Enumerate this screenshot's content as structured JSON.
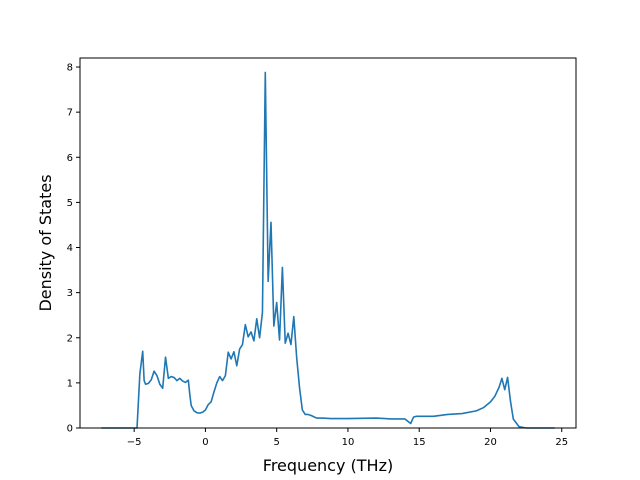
{
  "chart_data": {
    "type": "line",
    "xlabel": "Frequency (THz)",
    "ylabel": "Density of States",
    "xlim": [
      -8.8,
      26.0
    ],
    "ylim": [
      0,
      8.2
    ],
    "xticks": [
      -5,
      0,
      5,
      10,
      15,
      20,
      25
    ],
    "yticks": [
      0,
      1,
      2,
      3,
      4,
      5,
      6,
      7,
      8
    ],
    "grid": false,
    "legend": "none",
    "series": [
      {
        "color": "#1f77b4",
        "x": [
          -7.3,
          -4.8,
          -4.6,
          -4.5,
          -4.4,
          -4.3,
          -4.2,
          -4.0,
          -3.8,
          -3.6,
          -3.4,
          -3.2,
          -3.0,
          -2.8,
          -2.6,
          -2.4,
          -2.2,
          -2.0,
          -1.8,
          -1.6,
          -1.4,
          -1.2,
          -1.1,
          -1.0,
          -0.8,
          -0.6,
          -0.4,
          -0.2,
          0.0,
          0.2,
          0.4,
          0.6,
          0.8,
          1.0,
          1.2,
          1.4,
          1.6,
          1.8,
          2.0,
          2.2,
          2.4,
          2.6,
          2.8,
          3.0,
          3.2,
          3.4,
          3.6,
          3.8,
          4.0,
          4.2,
          4.4,
          4.6,
          4.8,
          5.0,
          5.2,
          5.4,
          5.6,
          5.8,
          6.0,
          6.2,
          6.4,
          6.6,
          6.8,
          7.0,
          7.2,
          7.4,
          7.6,
          7.8,
          8.2,
          8.8,
          10.0,
          12.0,
          13.0,
          14.0,
          14.4,
          14.6,
          14.8,
          16.0,
          17.0,
          18.0,
          19.0,
          19.5,
          20.0,
          20.3,
          20.6,
          20.8,
          21.0,
          21.2,
          21.4,
          21.6,
          22.0,
          22.5,
          24.5
        ],
        "y": [
          0,
          0,
          1.2,
          1.45,
          1.7,
          1.05,
          0.97,
          0.99,
          1.07,
          1.26,
          1.16,
          0.97,
          0.88,
          1.57,
          1.1,
          1.14,
          1.12,
          1.05,
          1.1,
          1.04,
          1.01,
          1.06,
          0.75,
          0.5,
          0.38,
          0.34,
          0.33,
          0.35,
          0.4,
          0.52,
          0.58,
          0.8,
          1.0,
          1.14,
          1.05,
          1.16,
          1.68,
          1.53,
          1.69,
          1.38,
          1.75,
          1.85,
          2.29,
          2.02,
          2.13,
          1.93,
          2.42,
          2.0,
          2.56,
          7.88,
          3.25,
          4.56,
          2.26,
          2.78,
          1.95,
          3.56,
          1.88,
          2.1,
          1.85,
          2.47,
          1.57,
          0.9,
          0.4,
          0.3,
          0.3,
          0.28,
          0.25,
          0.22,
          0.22,
          0.21,
          0.21,
          0.22,
          0.2,
          0.2,
          0.1,
          0.24,
          0.26,
          0.26,
          0.3,
          0.32,
          0.38,
          0.45,
          0.58,
          0.7,
          0.9,
          1.1,
          0.85,
          1.12,
          0.6,
          0.2,
          0.03,
          0,
          0
        ]
      }
    ]
  }
}
